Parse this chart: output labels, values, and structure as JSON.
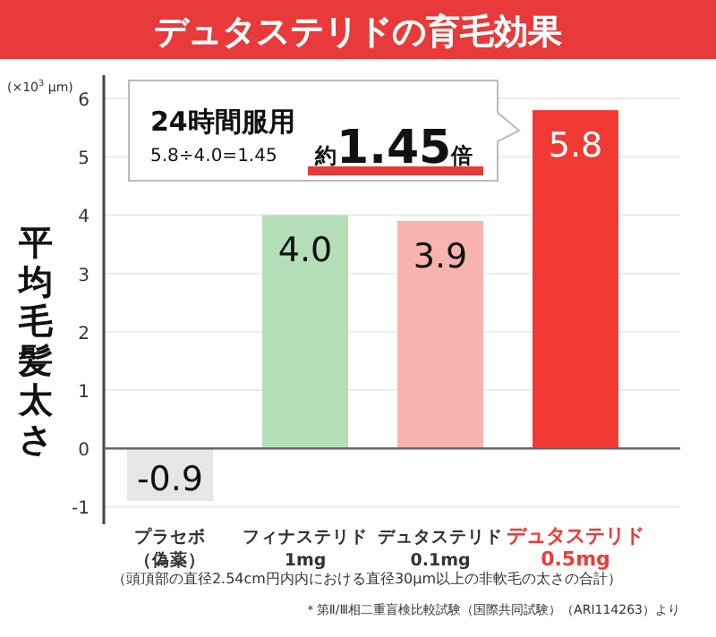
{
  "chart_data": {
    "type": "bar",
    "title": "デュタステリドの育毛効果",
    "ylabel": "平均毛髪太さ",
    "xlabel": "（頭頂部の直径2.54cm円内内における直径30μm以上の非軟毛の太さの合計）",
    "categories": [
      "プラセボ（偽薬）",
      "フィナステリド1mg",
      "デュタステリド0.1mg",
      "デュタステリド0.5mg"
    ],
    "values": [
      -0.9,
      4.0,
      3.9,
      5.8
    ],
    "colors": [
      "#e6e6e6",
      "#b3deb8",
      "#f7b4ae",
      "#f23a35"
    ],
    "ylim": [
      -1.3,
      6.4
    ],
    "yticks": [
      -1,
      0,
      1,
      2,
      3,
      4,
      5,
      6
    ],
    "grid": "y",
    "value_labels": [
      "-0.9",
      "4.0",
      "3.9",
      "5.8"
    ],
    "annotations": [
      "(×10$^{3}$ μm)",
      "24時間服用",
      "5.8÷4.0=1.45",
      "約1.45倍",
      "＊第Ⅱ/Ⅲ相二重盲検比較試験（国際共同試験）（ARI114263）より"
    ]
  }
}
